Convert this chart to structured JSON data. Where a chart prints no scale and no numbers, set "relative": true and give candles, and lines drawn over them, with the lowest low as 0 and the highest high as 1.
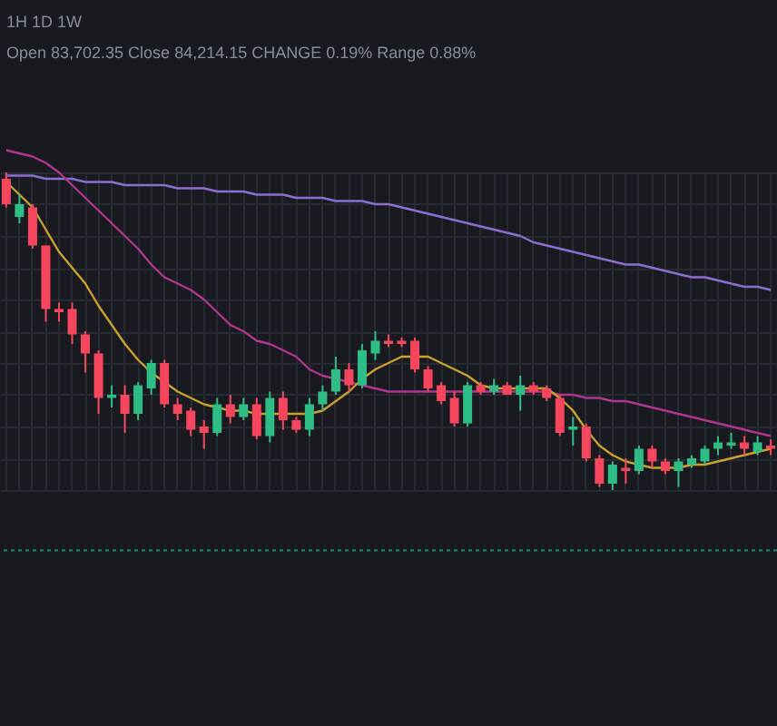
{
  "chart_data": {
    "type": "candlestick",
    "relative": true,
    "grid": true,
    "categories": [
      null,
      null,
      null,
      null,
      null,
      null,
      null,
      null,
      null,
      null,
      null,
      null,
      null,
      null,
      null,
      null,
      null,
      null,
      null,
      null,
      null,
      null,
      null,
      null,
      null,
      null,
      null,
      null,
      null,
      null,
      null,
      null,
      null,
      null,
      null,
      null,
      null,
      null,
      null,
      null,
      null,
      null,
      null,
      null,
      null,
      null,
      null,
      null,
      null,
      null,
      null,
      null,
      null,
      null,
      null,
      null,
      null,
      null,
      null
    ],
    "ohlc": [
      [
        0.98,
        1.0,
        0.89,
        0.9
      ],
      [
        0.86,
        0.93,
        0.84,
        0.9
      ],
      [
        0.89,
        0.9,
        0.76,
        0.77
      ],
      [
        0.77,
        0.77,
        0.53,
        0.57
      ],
      [
        0.57,
        0.59,
        0.53,
        0.56
      ],
      [
        0.57,
        0.59,
        0.46,
        0.49
      ],
      [
        0.49,
        0.5,
        0.37,
        0.43
      ],
      [
        0.43,
        0.44,
        0.24,
        0.29
      ],
      [
        0.29,
        0.33,
        0.26,
        0.3
      ],
      [
        0.3,
        0.33,
        0.18,
        0.24
      ],
      [
        0.24,
        0.34,
        0.22,
        0.33
      ],
      [
        0.32,
        0.41,
        0.3,
        0.4
      ],
      [
        0.4,
        0.41,
        0.26,
        0.27
      ],
      [
        0.27,
        0.29,
        0.22,
        0.24
      ],
      [
        0.25,
        0.26,
        0.17,
        0.19
      ],
      [
        0.2,
        0.22,
        0.13,
        0.18
      ],
      [
        0.18,
        0.29,
        0.17,
        0.27
      ],
      [
        0.27,
        0.3,
        0.21,
        0.23
      ],
      [
        0.23,
        0.29,
        0.22,
        0.27
      ],
      [
        0.27,
        0.29,
        0.16,
        0.17
      ],
      [
        0.17,
        0.31,
        0.15,
        0.29
      ],
      [
        0.29,
        0.31,
        0.19,
        0.22
      ],
      [
        0.22,
        0.23,
        0.18,
        0.19
      ],
      [
        0.19,
        0.29,
        0.17,
        0.27
      ],
      [
        0.27,
        0.33,
        0.25,
        0.31
      ],
      [
        0.31,
        0.42,
        0.3,
        0.38
      ],
      [
        0.38,
        0.4,
        0.31,
        0.33
      ],
      [
        0.33,
        0.46,
        0.32,
        0.44
      ],
      [
        0.43,
        0.5,
        0.41,
        0.47
      ],
      [
        0.47,
        0.49,
        0.45,
        0.46
      ],
      [
        0.47,
        0.48,
        0.45,
        0.46
      ],
      [
        0.47,
        0.48,
        0.37,
        0.38
      ],
      [
        0.38,
        0.39,
        0.31,
        0.32
      ],
      [
        0.33,
        0.34,
        0.27,
        0.28
      ],
      [
        0.29,
        0.31,
        0.2,
        0.21
      ],
      [
        0.21,
        0.34,
        0.2,
        0.33
      ],
      [
        0.33,
        0.34,
        0.3,
        0.31
      ],
      [
        0.31,
        0.35,
        0.3,
        0.33
      ],
      [
        0.33,
        0.34,
        0.3,
        0.3
      ],
      [
        0.3,
        0.36,
        0.25,
        0.33
      ],
      [
        0.33,
        0.34,
        0.3,
        0.31
      ],
      [
        0.32,
        0.33,
        0.28,
        0.29
      ],
      [
        0.29,
        0.3,
        0.17,
        0.18
      ],
      [
        0.19,
        0.23,
        0.14,
        0.2
      ],
      [
        0.2,
        0.21,
        0.09,
        0.1
      ],
      [
        0.1,
        0.11,
        0.01,
        0.02
      ],
      [
        0.02,
        0.09,
        0,
        0.08
      ],
      [
        0.07,
        0.1,
        0.02,
        0.06
      ],
      [
        0.06,
        0.14,
        0.05,
        0.13
      ],
      [
        0.13,
        0.14,
        0.07,
        0.09
      ],
      [
        0.09,
        0.1,
        0.05,
        0.06
      ],
      [
        0.06,
        0.1,
        0.01,
        0.09
      ],
      [
        0.08,
        0.11,
        0.07,
        0.1
      ],
      [
        0.09,
        0.14,
        0.08,
        0.13
      ],
      [
        0.13,
        0.17,
        0.11,
        0.15
      ],
      [
        0.14,
        0.18,
        0.13,
        0.15
      ],
      [
        0.15,
        0.17,
        0.11,
        0.13
      ],
      [
        0.12,
        0.17,
        0.11,
        0.15
      ],
      [
        0.14,
        0.16,
        0.11,
        0.13
      ]
    ],
    "colors": [
      "#f6465d",
      "#2ebd85",
      "#f6465d",
      "#f6465d",
      "#f6465d",
      "#f6465d",
      "#f6465d",
      "#f6465d",
      "#2ebd85",
      "#f6465d",
      "#2ebd85",
      "#2ebd85",
      "#f6465d",
      "#f6465d",
      "#f6465d",
      "#f6465d",
      "#2ebd85",
      "#f6465d",
      "#2ebd85",
      "#f6465d",
      "#2ebd85",
      "#f6465d",
      "#f6465d",
      "#2ebd85",
      "#2ebd85",
      "#2ebd85",
      "#f6465d",
      "#2ebd85",
      "#2ebd85",
      "#f6465d",
      "#f6465d",
      "#f6465d",
      "#f6465d",
      "#f6465d",
      "#f6465d",
      "#2ebd85",
      "#f6465d",
      "#2ebd85",
      "#f6465d",
      "#2ebd85",
      "#f6465d",
      "#f6465d",
      "#f6465d",
      "#2ebd85",
      "#f6465d",
      "#f6465d",
      "#2ebd85",
      "#f6465d",
      "#2ebd85",
      "#f6465d",
      "#f6465d",
      "#2ebd85",
      "#2ebd85",
      "#2ebd85",
      "#2ebd85",
      "#2ebd85",
      "#f6465d",
      "#2ebd85",
      "#f6465d"
    ],
    "series": [
      {
        "type": "line",
        "color": "#8a6fd1",
        "values": [
          0.99,
          0.99,
          0.99,
          0.98,
          0.98,
          0.98,
          0.97,
          0.97,
          0.97,
          0.96,
          0.96,
          0.96,
          0.96,
          0.95,
          0.95,
          0.95,
          0.94,
          0.94,
          0.94,
          0.93,
          0.93,
          0.93,
          0.92,
          0.92,
          0.92,
          0.91,
          0.91,
          0.91,
          0.9,
          0.9,
          0.89,
          0.88,
          0.87,
          0.86,
          0.85,
          0.84,
          0.83,
          0.82,
          0.81,
          0.8,
          0.78,
          0.77,
          0.76,
          0.75,
          0.74,
          0.73,
          0.72,
          0.71,
          0.71,
          0.7,
          0.69,
          0.68,
          0.67,
          0.67,
          0.66,
          0.65,
          0.64,
          0.64,
          0.63
        ]
      },
      {
        "type": "line",
        "color": "#b0358e",
        "values": [
          1.07,
          1.06,
          1.05,
          1.03,
          1.0,
          0.96,
          0.92,
          0.88,
          0.84,
          0.8,
          0.76,
          0.71,
          0.67,
          0.65,
          0.63,
          0.6,
          0.56,
          0.52,
          0.5,
          0.47,
          0.46,
          0.44,
          0.42,
          0.38,
          0.36,
          0.35,
          0.34,
          0.33,
          0.32,
          0.31,
          0.31,
          0.31,
          0.31,
          0.31,
          0.31,
          0.31,
          0.31,
          0.31,
          0.31,
          0.31,
          0.31,
          0.31,
          0.3,
          0.3,
          0.29,
          0.29,
          0.28,
          0.28,
          0.27,
          0.26,
          0.25,
          0.24,
          0.23,
          0.22,
          0.21,
          0.2,
          0.19,
          0.18,
          0.17
        ]
      },
      {
        "type": "line",
        "color": "#c9a227",
        "values": [
          0.97,
          0.93,
          0.89,
          0.82,
          0.75,
          0.7,
          0.65,
          0.58,
          0.52,
          0.46,
          0.41,
          0.37,
          0.34,
          0.31,
          0.29,
          0.27,
          0.26,
          0.25,
          0.25,
          0.24,
          0.24,
          0.24,
          0.24,
          0.24,
          0.25,
          0.28,
          0.31,
          0.35,
          0.38,
          0.4,
          0.42,
          0.42,
          0.42,
          0.4,
          0.38,
          0.36,
          0.33,
          0.32,
          0.32,
          0.32,
          0.32,
          0.32,
          0.29,
          0.25,
          0.19,
          0.14,
          0.11,
          0.09,
          0.08,
          0.07,
          0.07,
          0.07,
          0.08,
          0.08,
          0.09,
          0.1,
          0.11,
          0.12,
          0.13
        ]
      }
    ],
    "ref_lines": [
      {
        "axis": "y",
        "value": -0.19,
        "color": "#2a8a7a",
        "line_style": "dotted"
      }
    ],
    "annotations": [
      "1H   1D   1W",
      "Open 83,702.35  Close 84,214.15  CHANGE 0.19%  Range 0.88%"
    ]
  }
}
